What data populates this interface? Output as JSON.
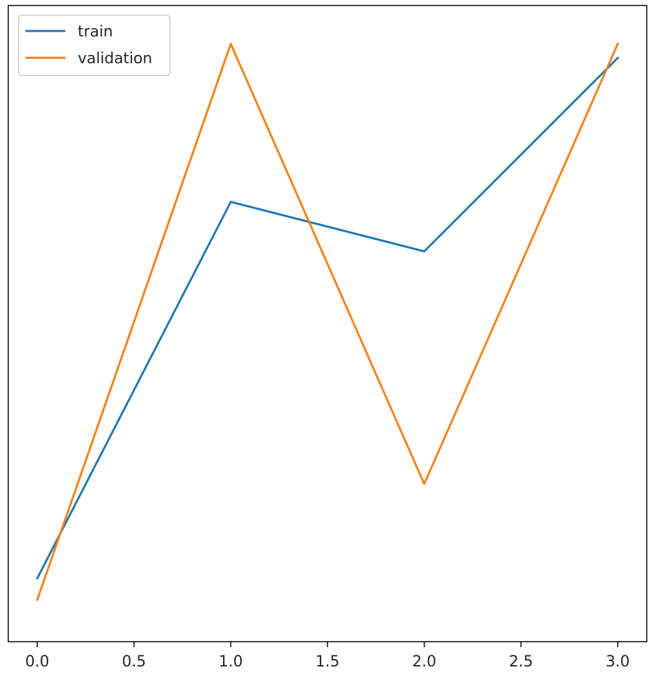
{
  "chart_data": {
    "type": "line",
    "title": "",
    "xlabel": "",
    "ylabel": "",
    "x": [
      0,
      1,
      2,
      3
    ],
    "xlim": [
      -0.15,
      3.15
    ],
    "ylim": [
      0,
      1
    ],
    "xticks": [
      "0.0",
      "0.5",
      "1.0",
      "1.5",
      "2.0",
      "2.5",
      "3.0"
    ],
    "xtick_values": [
      0,
      0.5,
      1.0,
      1.5,
      2.0,
      2.5,
      3.0
    ],
    "yticks_visible": false,
    "grid": false,
    "legend": "top-left",
    "series": [
      {
        "name": "train",
        "color": "#1f77b4",
        "values": [
          0.08,
          0.695,
          0.614,
          0.93
        ]
      },
      {
        "name": "validation",
        "color": "#ff7f0e",
        "values": [
          0.045,
          0.953,
          0.234,
          0.953
        ]
      }
    ]
  }
}
